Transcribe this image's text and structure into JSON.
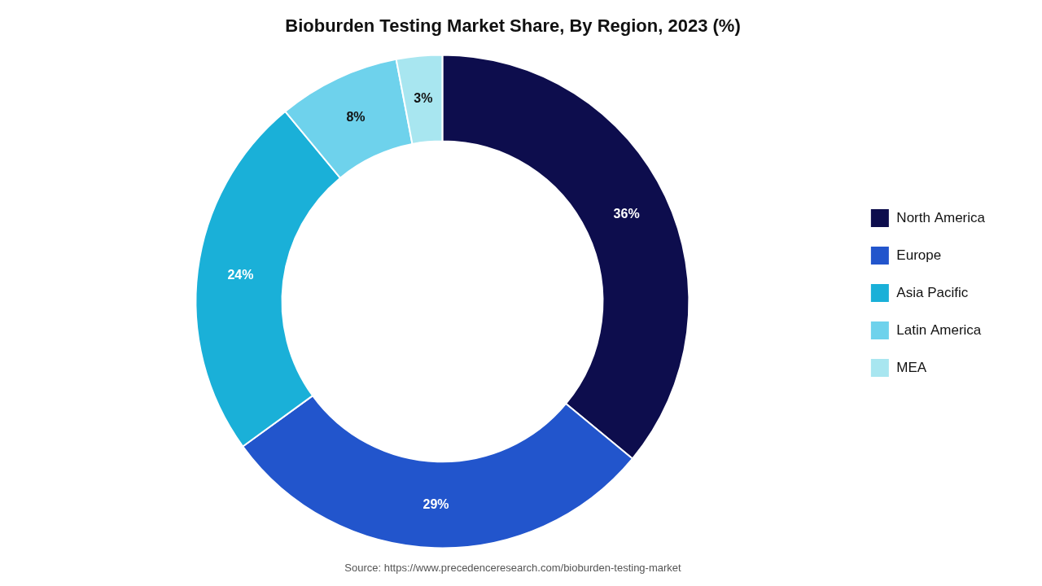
{
  "chart_data": {
    "type": "doughnut",
    "title": "Bioburden Testing Market Share, By Region, 2023 (%)",
    "categories": [
      "North America",
      "Europe",
      "Asia Pacific",
      "Latin America",
      "MEA"
    ],
    "values": [
      36,
      29,
      24,
      8,
      3
    ],
    "value_labels": [
      "36%",
      "29%",
      "24%",
      "8%",
      "3%"
    ],
    "colors": [
      "#0d0d4d",
      "#2255cc",
      "#1ab0d8",
      "#6ed2ec",
      "#a8e6f0"
    ],
    "data_labels": true,
    "legend": "right",
    "annotations": [
      "Source: https://www.precedenceresearch.com/bioburden-testing-market"
    ]
  }
}
